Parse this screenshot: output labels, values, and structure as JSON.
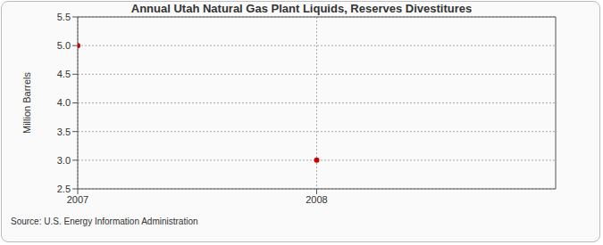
{
  "chart_data": {
    "type": "scatter",
    "title": "Annual Utah Natural Gas Plant Liquids, Reserves Divestitures",
    "subtitle": "Source: U.S. Energy Information Administration",
    "y_label": "Million Barrels",
    "x": [
      2007,
      2008
    ],
    "values": [
      5,
      3
    ],
    "color": "#cc0000",
    "marker": "circle",
    "xlim": [
      2007,
      2009
    ],
    "xticks": [
      2007,
      2008
    ],
    "ylim": [
      2.5,
      5.5
    ],
    "yticks": [
      {
        "value": 2.5,
        "label": "2.5"
      },
      {
        "value": 3,
        "label": "3.0"
      },
      {
        "value": 3.5,
        "label": "3.5"
      },
      {
        "value": 4,
        "label": "4.0"
      },
      {
        "value": 4.5,
        "label": "4.5"
      },
      {
        "value": 5,
        "label": "5.0"
      },
      {
        "value": 5.5,
        "label": "5.5"
      }
    ],
    "grid": true
  }
}
